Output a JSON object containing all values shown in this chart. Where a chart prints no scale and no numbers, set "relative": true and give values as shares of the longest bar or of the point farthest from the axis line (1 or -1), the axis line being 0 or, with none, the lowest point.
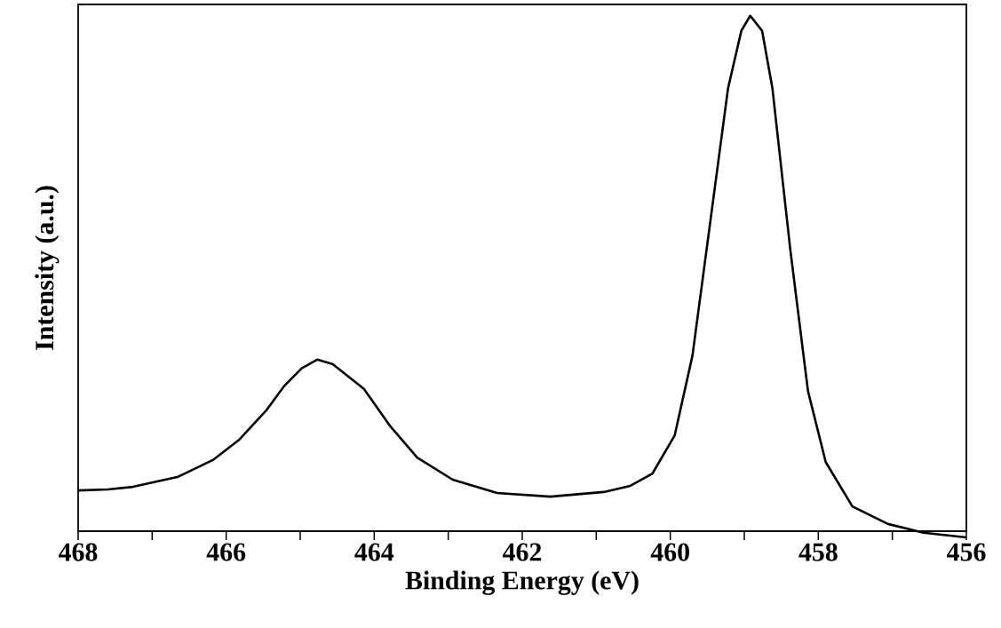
{
  "chart_data": {
    "type": "line",
    "xlabel": "Binding Energy  (eV)",
    "ylabel": "Intensity  (a.u.)",
    "relative": true,
    "line_style": "solid",
    "xlim": [
      468,
      456
    ],
    "xticks": [
      468,
      {
        "value": 467,
        "label": null
      },
      466,
      {
        "value": 465,
        "label": null
      },
      464,
      {
        "value": 463,
        "label": null
      },
      462,
      {
        "value": 461,
        "label": null
      },
      460,
      {
        "value": 459,
        "label": null
      },
      458,
      {
        "value": 457,
        "label": null
      },
      456
    ],
    "series": [
      {
        "color": "#000000",
        "x": [
          468,
          467.6,
          467.26,
          466.66,
          466.18,
          465.82,
          465.46,
          465.22,
          464.98,
          464.77,
          464.56,
          464.14,
          463.78,
          463.42,
          462.94,
          462.34,
          461.62,
          460.9,
          460.54,
          460.24,
          459.94,
          459.7,
          459.46,
          459.22,
          459.04,
          458.92,
          458.76,
          458.62,
          458.38,
          458.14,
          457.9,
          457.54,
          457.06,
          456.58,
          456.0
        ],
        "values": [
          0.079,
          0.081,
          0.086,
          0.105,
          0.138,
          0.178,
          0.234,
          0.281,
          0.316,
          0.333,
          0.324,
          0.276,
          0.203,
          0.143,
          0.1,
          0.074,
          0.067,
          0.076,
          0.088,
          0.112,
          0.186,
          0.341,
          0.6,
          0.859,
          0.971,
          1.0,
          0.971,
          0.859,
          0.548,
          0.272,
          0.134,
          0.048,
          0.014,
          -0.003,
          -0.012
        ]
      }
    ]
  }
}
